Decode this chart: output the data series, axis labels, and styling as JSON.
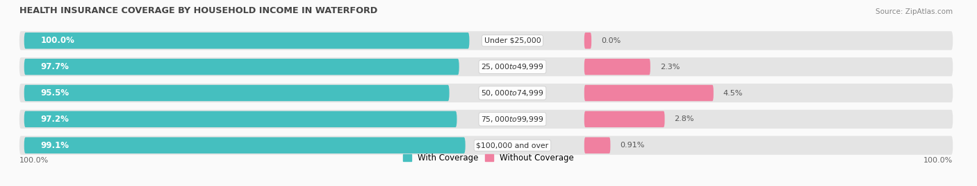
{
  "title": "HEALTH INSURANCE COVERAGE BY HOUSEHOLD INCOME IN WATERFORD",
  "source": "Source: ZipAtlas.com",
  "categories": [
    "Under $25,000",
    "$25,000 to $49,999",
    "$50,000 to $74,999",
    "$75,000 to $99,999",
    "$100,000 and over"
  ],
  "with_coverage": [
    100.0,
    97.7,
    95.5,
    97.2,
    99.1
  ],
  "without_coverage": [
    0.0,
    2.3,
    4.5,
    2.8,
    0.91
  ],
  "color_with": "#45BFBF",
  "color_without": "#F080A0",
  "row_bg": "#e8e8e8",
  "background": "#fafafa",
  "legend_with": "With Coverage",
  "legend_without": "Without Coverage",
  "left_label_100": "100.0%",
  "right_label_100": "100.0%",
  "bar_height": 0.62,
  "fig_width": 14.06,
  "fig_height": 2.69
}
